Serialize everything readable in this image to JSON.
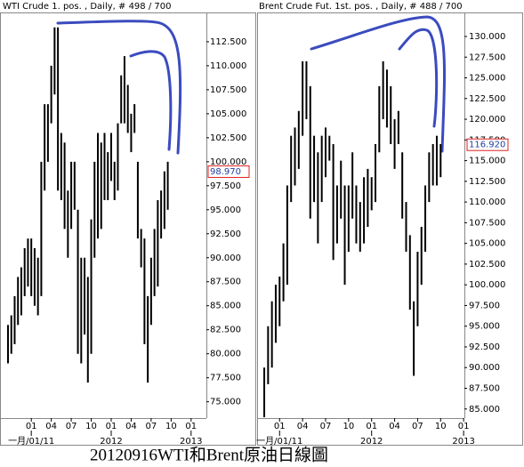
{
  "chart_data": [
    {
      "type": "hilo",
      "title": "WTI Crude 1. pos. , Daily, # 498 / 700",
      "color": "#000000",
      "x": [
        -3.5,
        -3,
        -2.5,
        -2,
        -1.5,
        -1,
        -0.5,
        0,
        0.5,
        1,
        1.5,
        2,
        2.5,
        3,
        3.5,
        4,
        4.5,
        5,
        5.5,
        6,
        6.5,
        7,
        7.5,
        8,
        8.5,
        9,
        9.5,
        10,
        10.5,
        11,
        11.5,
        12,
        12.5,
        13,
        13.5,
        14,
        14.5,
        15,
        15.5,
        16,
        16.5,
        17,
        17.5,
        18,
        18.5,
        19,
        19.5,
        20,
        20.5
      ],
      "low": [
        79,
        80,
        81,
        83,
        84,
        86,
        87,
        86,
        85,
        84,
        86,
        97,
        100,
        104,
        107,
        97,
        96,
        93,
        90,
        93,
        95,
        80,
        79,
        82,
        77,
        80,
        90,
        92,
        93,
        96,
        96,
        98,
        96,
        97,
        104,
        104,
        103,
        101,
        103,
        92,
        89,
        81,
        77,
        83,
        86,
        87,
        92,
        93,
        95
      ],
      "high": [
        83,
        84,
        86,
        88,
        89,
        91,
        92,
        92,
        91,
        90,
        100,
        106,
        106,
        110,
        114,
        114,
        103,
        102,
        97,
        100,
        100,
        95,
        90,
        90,
        88,
        94,
        100,
        103,
        102,
        103,
        101,
        103,
        100,
        104,
        109,
        111,
        108,
        105,
        106,
        100,
        93,
        92,
        86,
        90,
        93,
        96,
        97,
        99,
        100
      ],
      "last_price": {
        "value": 98.97,
        "label": "98.970"
      },
      "xlim": [
        -4.3,
        26.3
      ],
      "xticks": [
        {
          "value": 0,
          "label": "01"
        },
        {
          "value": 3,
          "label": "04"
        },
        {
          "value": 6,
          "label": "07"
        },
        {
          "value": 9,
          "label": "10"
        },
        {
          "value": 12,
          "label": "01"
        },
        {
          "value": 15,
          "label": "04"
        },
        {
          "value": 18,
          "label": "07"
        },
        {
          "value": 21,
          "label": "10"
        },
        {
          "value": 24,
          "label": "01"
        }
      ],
      "year_ticks": [
        {
          "value": 0,
          "label": "一月/01/11"
        },
        {
          "value": 12,
          "label": "2012"
        },
        {
          "value": 24,
          "label": "2013"
        }
      ],
      "ylim": [
        73.3,
        115.55
      ],
      "yticks": [
        {
          "value": 75,
          "label": "75.000"
        },
        {
          "value": 77.5,
          "label": "77.500"
        },
        {
          "value": 80,
          "label": "80.000"
        },
        {
          "value": 82.5,
          "label": "82.500"
        },
        {
          "value": 85,
          "label": "85.000"
        },
        {
          "value": 87.5,
          "label": "87.500"
        },
        {
          "value": 90,
          "label": "90.000"
        },
        {
          "value": 92.5,
          "label": "92.500"
        },
        {
          "value": 95,
          "label": "95.000"
        },
        {
          "value": 97.5,
          "label": "97.500"
        },
        {
          "value": 100,
          "label": "100.000"
        },
        {
          "value": 102.5,
          "label": "102.500"
        },
        {
          "value": 105,
          "label": "105.000"
        },
        {
          "value": 107.5,
          "label": "107.500"
        },
        {
          "value": 110,
          "label": "110.000"
        },
        {
          "value": 112.5,
          "label": "112.500"
        }
      ]
    },
    {
      "type": "hilo",
      "title": "Brent Crude Fut. 1st. pos. , Daily, # 488 / 700",
      "color": "#000000",
      "x": [
        -2,
        -1.5,
        -1,
        -0.5,
        0,
        0.5,
        1,
        1.5,
        2,
        2.5,
        3,
        3.5,
        4,
        4.5,
        5,
        5.5,
        6,
        6.5,
        7,
        7.5,
        8,
        8.5,
        9,
        9.5,
        10,
        10.5,
        11,
        11.5,
        12,
        12.5,
        13,
        13.5,
        14,
        14.5,
        15,
        15.5,
        16,
        16.5,
        17,
        17.5,
        18,
        18.5,
        19,
        19.5,
        20,
        20.5,
        21
      ],
      "low": [
        84,
        88,
        90,
        93,
        95,
        98,
        100,
        110,
        112,
        114,
        118,
        120,
        108,
        110,
        105,
        110,
        113,
        115,
        103,
        105,
        108,
        100,
        104,
        108,
        105,
        104,
        105,
        107,
        109,
        110,
        116,
        120,
        119,
        117,
        114,
        117,
        108,
        104,
        97,
        89,
        95,
        100,
        104,
        110,
        112,
        112,
        113
      ],
      "high": [
        90,
        95,
        98,
        100,
        101,
        105,
        112,
        118,
        119,
        121,
        127,
        127,
        124,
        118,
        116,
        118,
        119,
        118,
        117,
        112,
        115,
        112,
        112,
        116,
        112,
        110,
        113,
        114,
        113,
        117,
        124,
        127,
        126,
        124,
        120,
        121,
        116,
        110,
        106,
        98,
        104,
        107,
        112,
        116,
        117,
        118,
        117
      ],
      "last_price": {
        "value": 116.92,
        "label": "116.920"
      },
      "xlim": [
        -2.7,
        24.1
      ],
      "xticks": [
        {
          "value": 0,
          "label": "01"
        },
        {
          "value": 3,
          "label": "04"
        },
        {
          "value": 6,
          "label": "07"
        },
        {
          "value": 9,
          "label": "10"
        },
        {
          "value": 12,
          "label": "01"
        },
        {
          "value": 15,
          "label": "04"
        },
        {
          "value": 18,
          "label": "07"
        },
        {
          "value": 21,
          "label": "10"
        },
        {
          "value": 24,
          "label": "01"
        }
      ],
      "year_ticks": [
        {
          "value": 0,
          "label": "一月/01/11"
        },
        {
          "value": 12,
          "label": "2012"
        },
        {
          "value": 24,
          "label": "2013"
        }
      ],
      "ylim": [
        83.9,
        132.9
      ],
      "yticks": [
        {
          "value": 85,
          "label": "85.000"
        },
        {
          "value": 87.5,
          "label": "87.500"
        },
        {
          "value": 90,
          "label": "90.000"
        },
        {
          "value": 92.5,
          "label": "92.500"
        },
        {
          "value": 95,
          "label": "95.000"
        },
        {
          "value": 97.5,
          "label": "97.500"
        },
        {
          "value": 100,
          "label": "100.000"
        },
        {
          "value": 102.5,
          "label": "102.500"
        },
        {
          "value": 105,
          "label": "105.000"
        },
        {
          "value": 107.5,
          "label": "107.500"
        },
        {
          "value": 110,
          "label": "110.000"
        },
        {
          "value": 112.5,
          "label": "112.500"
        },
        {
          "value": 115,
          "label": "115.000"
        },
        {
          "value": 117.5,
          "label": "117.500"
        },
        {
          "value": 120,
          "label": "120.000"
        },
        {
          "value": 122.5,
          "label": "122.500"
        },
        {
          "value": 125,
          "label": "125.000"
        },
        {
          "value": 127.5,
          "label": "127.500"
        },
        {
          "value": 130,
          "label": "130.000"
        }
      ]
    }
  ],
  "caption": "20120916WTI和Brent原油日線圖"
}
